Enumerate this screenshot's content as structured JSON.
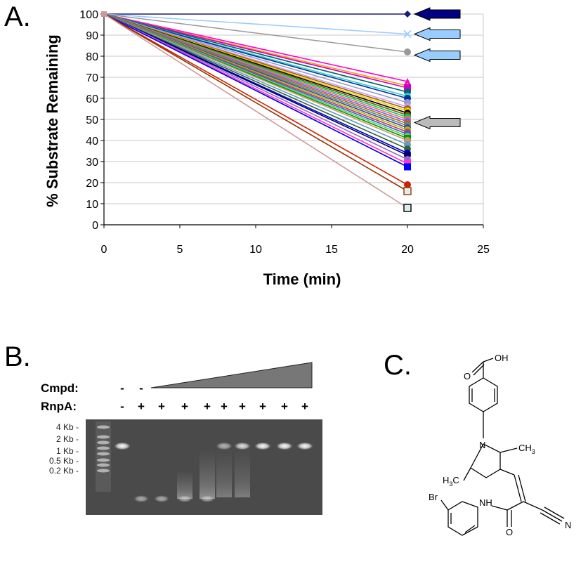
{
  "panels": {
    "a_label": "A.",
    "b_label": "B.",
    "c_label": "C."
  },
  "chart_data": {
    "type": "line",
    "title": "",
    "xlabel": "Time (min)",
    "ylabel": "% Substrate Remaining",
    "xlim": [
      0,
      25
    ],
    "ylim": [
      0,
      100
    ],
    "xticks": [
      0,
      5,
      10,
      15,
      20,
      25
    ],
    "yticks": [
      0,
      10,
      20,
      30,
      40,
      50,
      60,
      70,
      80,
      90,
      100
    ],
    "grid": true,
    "legend": "none",
    "series": [
      {
        "x": [
          0,
          20
        ],
        "y": [
          100,
          100
        ],
        "color": "#1a1a7a",
        "marker": "diamond"
      },
      {
        "x": [
          0,
          20
        ],
        "y": [
          100,
          90.5
        ],
        "color": "#99ccff",
        "marker": "x"
      },
      {
        "x": [
          0,
          20
        ],
        "y": [
          100,
          82
        ],
        "color": "#999999",
        "marker": "circle"
      },
      {
        "x": [
          0,
          20
        ],
        "y": [
          100,
          68
        ],
        "color": "#ff00cc",
        "marker": "triangle"
      },
      {
        "x": [
          0,
          20
        ],
        "y": [
          100,
          66
        ],
        "color": "#ff9900",
        "marker": "triangle"
      },
      {
        "x": [
          0,
          20
        ],
        "y": [
          100,
          65
        ],
        "color": "#cc00cc",
        "marker": "square"
      },
      {
        "x": [
          0,
          20
        ],
        "y": [
          100,
          63
        ],
        "color": "#006666",
        "marker": "circle"
      },
      {
        "x": [
          0,
          20
        ],
        "y": [
          100,
          61
        ],
        "color": "#33cccc",
        "marker": "circle"
      },
      {
        "x": [
          0,
          20
        ],
        "y": [
          100,
          60
        ],
        "color": "#003399",
        "marker": "circle"
      },
      {
        "x": [
          0,
          20
        ],
        "y": [
          100,
          58
        ],
        "color": "#9999cc",
        "marker": "circle"
      },
      {
        "x": [
          0,
          20
        ],
        "y": [
          100,
          56
        ],
        "color": "#cc99ff",
        "marker": "circle"
      },
      {
        "x": [
          0,
          20
        ],
        "y": [
          100,
          55
        ],
        "color": "#996600",
        "marker": "circle"
      },
      {
        "x": [
          0,
          20
        ],
        "y": [
          100,
          54
        ],
        "color": "#ffcc00",
        "marker": "circle"
      },
      {
        "x": [
          0,
          20
        ],
        "y": [
          100,
          53
        ],
        "color": "#000000",
        "marker": "circle"
      },
      {
        "x": [
          0,
          20
        ],
        "y": [
          100,
          52
        ],
        "color": "#666600",
        "marker": "circle"
      },
      {
        "x": [
          0,
          20
        ],
        "y": [
          100,
          51
        ],
        "color": "#00cc66",
        "marker": "circle"
      },
      {
        "x": [
          0,
          20
        ],
        "y": [
          100,
          50
        ],
        "color": "#ff6666",
        "marker": "circle"
      },
      {
        "x": [
          0,
          20
        ],
        "y": [
          100,
          49
        ],
        "color": "#6666ff",
        "marker": "circle"
      },
      {
        "x": [
          0,
          20
        ],
        "y": [
          100,
          48
        ],
        "color": "#cc6600",
        "marker": "circle"
      },
      {
        "x": [
          0,
          20
        ],
        "y": [
          100,
          47
        ],
        "color": "#339999",
        "marker": "circle"
      },
      {
        "x": [
          0,
          20
        ],
        "y": [
          100,
          46
        ],
        "color": "#663399",
        "marker": "circle"
      },
      {
        "x": [
          0,
          20
        ],
        "y": [
          100,
          45
        ],
        "color": "#99cc00",
        "marker": "circle"
      },
      {
        "x": [
          0,
          20
        ],
        "y": [
          100,
          44
        ],
        "color": "#cc3366",
        "marker": "circle"
      },
      {
        "x": [
          0,
          20
        ],
        "y": [
          100,
          43
        ],
        "color": "#3366cc",
        "marker": "circle"
      },
      {
        "x": [
          0,
          20
        ],
        "y": [
          100,
          42
        ],
        "color": "#66cc66",
        "marker": "circle"
      },
      {
        "x": [
          0,
          20
        ],
        "y": [
          100,
          41
        ],
        "color": "#009900",
        "marker": "square"
      },
      {
        "x": [
          0,
          20
        ],
        "y": [
          100,
          40
        ],
        "color": "#cc9966",
        "marker": "circle"
      },
      {
        "x": [
          0,
          20
        ],
        "y": [
          100,
          38
        ],
        "color": "#6699cc",
        "marker": "circle"
      },
      {
        "x": [
          0,
          20
        ],
        "y": [
          100,
          36
        ],
        "color": "#336633",
        "marker": "circle"
      },
      {
        "x": [
          0,
          20
        ],
        "y": [
          100,
          34
        ],
        "color": "#0000cc",
        "marker": "circle"
      },
      {
        "x": [
          0,
          20
        ],
        "y": [
          100,
          33
        ],
        "color": "#000066",
        "marker": "circle"
      },
      {
        "x": [
          0,
          20
        ],
        "y": [
          100,
          31
        ],
        "color": "#9966cc",
        "marker": "circle"
      },
      {
        "x": [
          0,
          20
        ],
        "y": [
          100,
          29
        ],
        "color": "#ff33cc",
        "marker": "square"
      },
      {
        "x": [
          0,
          20
        ],
        "y": [
          100,
          27.5
        ],
        "color": "#ff9933",
        "marker": "triangle"
      },
      {
        "x": [
          0,
          20
        ],
        "y": [
          100,
          27.5
        ],
        "color": "#0000ff",
        "marker": "square"
      },
      {
        "x": [
          0,
          20
        ],
        "y": [
          100,
          19
        ],
        "color": "#cc2200",
        "marker": "circle"
      },
      {
        "x": [
          0,
          20
        ],
        "y": [
          100,
          16
        ],
        "color": "#993300",
        "marker": "square-open"
      },
      {
        "x": [
          0,
          20
        ],
        "y": [
          100,
          8
        ],
        "color": "#cc9999",
        "marker": "square-open"
      }
    ],
    "arrows": [
      {
        "y": 100,
        "fill": "#000080"
      },
      {
        "y": 90.5,
        "fill": "#99ccff"
      },
      {
        "y": 80.5,
        "fill": "#99ccff"
      },
      {
        "y": 48.5,
        "fill": "#bbbbbb"
      }
    ]
  },
  "gel": {
    "cmpd_label": "Cmpd:",
    "rnpa_label": "RnpA:",
    "cmpd_signs": [
      "-",
      "-"
    ],
    "rnpa_signs": [
      "-",
      "+",
      "+",
      "+",
      "+",
      "+",
      "+",
      "+",
      "+",
      "+"
    ],
    "marker_labels": [
      "4 Kb",
      "2 Kb",
      "1 Kb",
      "0.5 Kb",
      "0.2 Kb"
    ],
    "lanes": [
      {
        "band": "intact",
        "level": 1.0
      },
      {
        "band": "degraded",
        "level": 0.0
      },
      {
        "band": "degraded",
        "level": 0.05
      },
      {
        "band": "degraded",
        "level": 0.2
      },
      {
        "band": "degraded",
        "level": 0.35
      },
      {
        "band": "intact",
        "level": 0.6
      },
      {
        "band": "intact",
        "level": 0.85
      },
      {
        "band": "intact",
        "level": 1.0
      },
      {
        "band": "intact",
        "level": 1.0
      },
      {
        "band": "intact",
        "level": 1.0
      }
    ]
  },
  "chem": {
    "atoms": {
      "oh": "OH",
      "o1": "O",
      "n_pyrrole": "N",
      "ch3_top": "CH",
      "ch3_top_sub": "3",
      "h3c_h": "H",
      "h3c_sub": "3",
      "h3c_c": "C",
      "br": "Br",
      "nh": "NH",
      "o2": "O",
      "n_cyano": "N"
    }
  }
}
